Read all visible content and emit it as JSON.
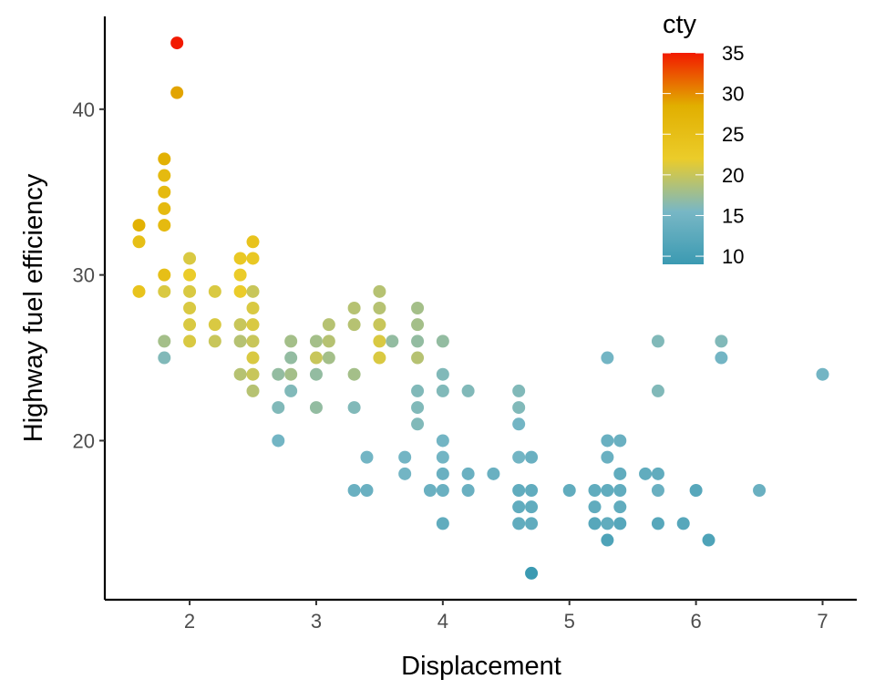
{
  "chart_data": {
    "type": "scatter",
    "title": "",
    "xlabel": "Displacement",
    "ylabel": "Highway fuel efficiency",
    "xlim": [
      1.33,
      7.27
    ],
    "ylim": [
      10.4,
      45.6
    ],
    "x_ticks": [
      2,
      3,
      4,
      5,
      6,
      7
    ],
    "y_ticks": [
      20,
      30,
      40
    ],
    "grid": false,
    "legend": {
      "title": "cty",
      "type": "colorbar",
      "placement": "top-right",
      "range": [
        9,
        35
      ],
      "ticks": [
        10,
        15,
        20,
        25,
        30,
        35
      ],
      "palette": [
        "#3B9AB2",
        "#78B7C5",
        "#EBCC2A",
        "#E1AF00",
        "#F21A00"
      ]
    },
    "columns": [
      "displ",
      "hwy",
      "cty"
    ],
    "points": [
      [
        1.6,
        33,
        28
      ],
      [
        1.6,
        32,
        25
      ],
      [
        1.6,
        29,
        24
      ],
      [
        1.8,
        37,
        28
      ],
      [
        1.8,
        36,
        26
      ],
      [
        1.8,
        35,
        26
      ],
      [
        1.8,
        34,
        26
      ],
      [
        1.8,
        33,
        26
      ],
      [
        1.8,
        30,
        25
      ],
      [
        1.8,
        29,
        21
      ],
      [
        1.8,
        26,
        18
      ],
      [
        1.8,
        25,
        16
      ],
      [
        1.9,
        44,
        35
      ],
      [
        1.9,
        41,
        29
      ],
      [
        2.0,
        31,
        21
      ],
      [
        2.0,
        30,
        22
      ],
      [
        2.0,
        29,
        21
      ],
      [
        2.0,
        28,
        21
      ],
      [
        2.0,
        27,
        21
      ],
      [
        2.0,
        26,
        21
      ],
      [
        2.2,
        29,
        21
      ],
      [
        2.2,
        27,
        21
      ],
      [
        2.2,
        26,
        20
      ],
      [
        2.4,
        31,
        23
      ],
      [
        2.4,
        30,
        22
      ],
      [
        2.4,
        29,
        22
      ],
      [
        2.4,
        27,
        20
      ],
      [
        2.4,
        26,
        19
      ],
      [
        2.4,
        24,
        19
      ],
      [
        2.5,
        32,
        24
      ],
      [
        2.5,
        31,
        23
      ],
      [
        2.5,
        29,
        20
      ],
      [
        2.5,
        28,
        21
      ],
      [
        2.5,
        27,
        21
      ],
      [
        2.5,
        26,
        20
      ],
      [
        2.5,
        25,
        21
      ],
      [
        2.5,
        24,
        20
      ],
      [
        2.5,
        23,
        19
      ],
      [
        2.7,
        24,
        17
      ],
      [
        2.7,
        22,
        16
      ],
      [
        2.7,
        20,
        15
      ],
      [
        2.8,
        26,
        18
      ],
      [
        2.8,
        25,
        17
      ],
      [
        2.8,
        24,
        18
      ],
      [
        2.8,
        23,
        16
      ],
      [
        3.0,
        26,
        18
      ],
      [
        3.0,
        25,
        20
      ],
      [
        3.0,
        24,
        17
      ],
      [
        3.0,
        22,
        17
      ],
      [
        3.1,
        27,
        19
      ],
      [
        3.1,
        26,
        19
      ],
      [
        3.1,
        25,
        18
      ],
      [
        3.3,
        28,
        19
      ],
      [
        3.3,
        27,
        19
      ],
      [
        3.3,
        24,
        18
      ],
      [
        3.3,
        22,
        16
      ],
      [
        3.3,
        17,
        14
      ],
      [
        3.4,
        19,
        15
      ],
      [
        3.4,
        17,
        14
      ],
      [
        3.5,
        29,
        19
      ],
      [
        3.5,
        28,
        19
      ],
      [
        3.5,
        27,
        20
      ],
      [
        3.5,
        26,
        21
      ],
      [
        3.5,
        25,
        21
      ],
      [
        3.6,
        26,
        17
      ],
      [
        3.7,
        19,
        15
      ],
      [
        3.7,
        18,
        15
      ],
      [
        3.8,
        28,
        18
      ],
      [
        3.8,
        27,
        18
      ],
      [
        3.8,
        26,
        17
      ],
      [
        3.8,
        25,
        19
      ],
      [
        3.8,
        23,
        16
      ],
      [
        3.8,
        22,
        16
      ],
      [
        3.8,
        21,
        16
      ],
      [
        3.9,
        17,
        14
      ],
      [
        4.0,
        26,
        17
      ],
      [
        4.0,
        24,
        16
      ],
      [
        4.0,
        23,
        16
      ],
      [
        4.0,
        20,
        15
      ],
      [
        4.0,
        19,
        15
      ],
      [
        4.0,
        18,
        14
      ],
      [
        4.0,
        17,
        14
      ],
      [
        4.0,
        15,
        13
      ],
      [
        4.2,
        23,
        16
      ],
      [
        4.2,
        18,
        14
      ],
      [
        4.2,
        17,
        14
      ],
      [
        4.4,
        18,
        14
      ],
      [
        4.6,
        23,
        16
      ],
      [
        4.6,
        22,
        16
      ],
      [
        4.6,
        21,
        15
      ],
      [
        4.6,
        19,
        15
      ],
      [
        4.6,
        17,
        13
      ],
      [
        4.6,
        16,
        13
      ],
      [
        4.6,
        15,
        13
      ],
      [
        4.7,
        19,
        14
      ],
      [
        4.7,
        17,
        13
      ],
      [
        4.7,
        16,
        13
      ],
      [
        4.7,
        15,
        13
      ],
      [
        4.7,
        12,
        9
      ],
      [
        5.0,
        17,
        13
      ],
      [
        5.2,
        17,
        13
      ],
      [
        5.2,
        16,
        13
      ],
      [
        5.2,
        15,
        12
      ],
      [
        5.3,
        25,
        15
      ],
      [
        5.3,
        20,
        14
      ],
      [
        5.3,
        19,
        14
      ],
      [
        5.3,
        17,
        13
      ],
      [
        5.3,
        15,
        13
      ],
      [
        5.3,
        14,
        11
      ],
      [
        5.4,
        20,
        14
      ],
      [
        5.4,
        18,
        13
      ],
      [
        5.4,
        17,
        13
      ],
      [
        5.4,
        16,
        13
      ],
      [
        5.4,
        15,
        12
      ],
      [
        5.6,
        18,
        13
      ],
      [
        5.7,
        26,
        16
      ],
      [
        5.7,
        23,
        16
      ],
      [
        5.7,
        18,
        13
      ],
      [
        5.7,
        17,
        14
      ],
      [
        5.7,
        15,
        12
      ],
      [
        5.9,
        15,
        12
      ],
      [
        6.0,
        17,
        12
      ],
      [
        6.1,
        14,
        11
      ],
      [
        6.2,
        26,
        16
      ],
      [
        6.2,
        25,
        15
      ],
      [
        6.5,
        17,
        14
      ],
      [
        7.0,
        24,
        15
      ]
    ]
  }
}
